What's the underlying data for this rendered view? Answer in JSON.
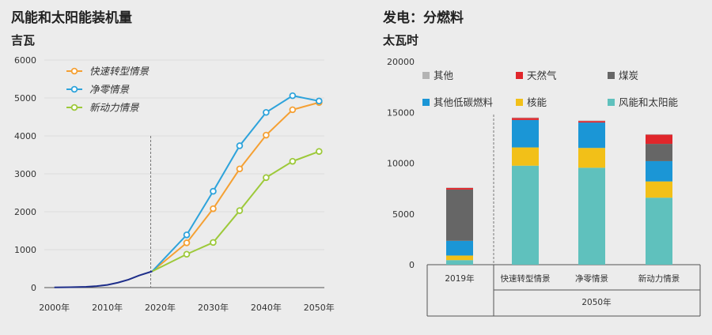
{
  "left": {
    "title": "风能和太阳能装机量",
    "unit": "吉瓦"
  },
  "right": {
    "title": "发电：分燃料",
    "unit": "太瓦时"
  },
  "colors": {
    "orange": "#f5a033",
    "blue": "#2ea3db",
    "green": "#9dc93a",
    "navy": "#1e2e8a",
    "lightgray": "#b3b3b3",
    "red": "#e0262b",
    "darkgray": "#666666",
    "midblue": "#1b96d6",
    "yellow": "#f2c018",
    "teal": "#5fc1bd"
  },
  "chart_data": [
    {
      "type": "line",
      "x_ticks": [
        "2000年",
        "2010年",
        "2020年",
        "2030年",
        "2040年",
        "2050年"
      ],
      "x_tick_values": [
        2000,
        2010,
        2020,
        2030,
        2040,
        2050
      ],
      "y_ticks": [
        "0",
        "1000",
        "2000",
        "3000",
        "4000",
        "5000",
        "6000"
      ],
      "ylim": [
        0,
        6000
      ],
      "xlim": [
        1999,
        2051
      ],
      "historical": {
        "x": [
          2000,
          2003,
          2006,
          2008,
          2010,
          2012,
          2014,
          2016,
          2018.5
        ],
        "y": [
          5,
          10,
          20,
          40,
          70,
          130,
          210,
          320,
          430
        ]
      },
      "series": [
        {
          "name": "快速转型情景",
          "x": [
            2018.5,
            2025,
            2030,
            2035,
            2040,
            2045,
            2050
          ],
          "y": [
            430,
            1180,
            2080,
            3130,
            4020,
            4690,
            4880
          ]
        },
        {
          "name": "净零情景",
          "x": [
            2018.5,
            2025,
            2030,
            2035,
            2040,
            2045,
            2050
          ],
          "y": [
            430,
            1390,
            2540,
            3740,
            4620,
            5060,
            4920
          ]
        },
        {
          "name": "新动力情景",
          "x": [
            2018.5,
            2025,
            2030,
            2035,
            2040,
            2045,
            2050
          ],
          "y": [
            430,
            880,
            1190,
            2030,
            2900,
            3330,
            3590
          ]
        }
      ]
    },
    {
      "type": "bar",
      "stacked": true,
      "categories": [
        "2019年",
        "快速转型情景",
        "净零情景",
        "新动力情景"
      ],
      "group_label": "2050年",
      "y_ticks": [
        "0",
        "5000",
        "10000",
        "15000",
        "20000"
      ],
      "ylim": [
        0,
        20000
      ],
      "series": [
        {
          "name": "风能和太阳能",
          "values": [
            450,
            9750,
            9550,
            6600
          ]
        },
        {
          "name": "核能",
          "values": [
            450,
            1800,
            1950,
            1600
          ]
        },
        {
          "name": "其他低碳燃料",
          "values": [
            1450,
            2700,
            2500,
            2000
          ]
        },
        {
          "name": "煤炭",
          "values": [
            5050,
            0,
            0,
            1700
          ]
        },
        {
          "name": "天然气",
          "values": [
            150,
            200,
            150,
            900
          ]
        },
        {
          "name": "其他",
          "values": [
            50,
            50,
            50,
            50
          ]
        }
      ]
    }
  ]
}
